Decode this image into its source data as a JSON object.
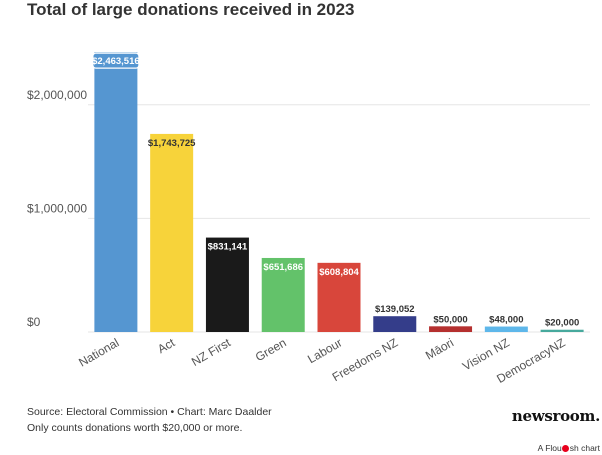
{
  "chart_data": {
    "type": "bar",
    "title": "Total of large donations received in 2023",
    "categories": [
      "National",
      "Act",
      "NZ First",
      "Green",
      "Labour",
      "Freedoms NZ",
      "Māori",
      "Vision NZ",
      "DemocracyNZ"
    ],
    "values": [
      2463516,
      1743725,
      831141,
      651686,
      608804,
      139052,
      50000,
      48000,
      20000
    ],
    "value_labels": [
      "$2,463,516",
      "$1,743,725",
      "$831,141",
      "$651,686",
      "$608,804",
      "$139,052",
      "$50,000",
      "$48,000",
      "$20,000"
    ],
    "colors": [
      "#5596d1",
      "#f7d33a",
      "#1a1a1a",
      "#63c26a",
      "#d8463b",
      "#343d8a",
      "#b5302f",
      "#5eb7ea",
      "#47a99d"
    ],
    "label_inside": [
      true,
      true,
      true,
      true,
      true,
      false,
      false,
      false,
      false
    ],
    "y_ticks": [
      0,
      1000000,
      2000000
    ],
    "y_tick_labels": [
      "$0",
      "$1,000,000",
      "$2,000,000"
    ],
    "ylim": [
      0,
      2500000
    ],
    "grid": true,
    "xlabel": "",
    "ylabel": ""
  },
  "footer": {
    "source": "Source: Electoral Commission • Chart: Marc Daalder",
    "note": "Only counts donations worth $20,000 or more."
  },
  "brand": {
    "name": "newsroom",
    "dot": ".",
    "flourish_prefix": "A Flou",
    "flourish_suffix": "sh chart"
  }
}
